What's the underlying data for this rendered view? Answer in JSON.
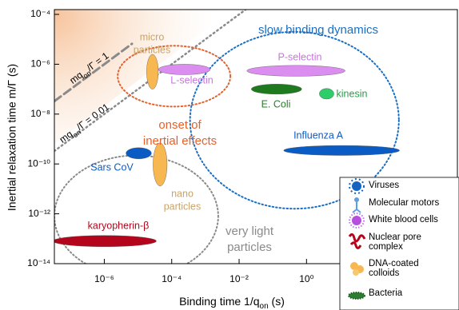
{
  "chart_data": {
    "type": "ellipse-map",
    "x_label": {
      "text": "Binding time 1/q",
      "sub": "on",
      "rest": " (s)"
    },
    "y_label": {
      "text": "Inertial relaxation time m/Γ (s)"
    },
    "log_x": true,
    "log_y": true,
    "xlim": [
      3.3e-08,
      30000
    ],
    "ylim": [
      1e-14,
      0.0001
    ],
    "xticks": [
      {
        "value": 1e-06,
        "label": "10⁻⁶"
      },
      {
        "value": 0.0001,
        "label": "10⁻⁴"
      },
      {
        "value": 0.01,
        "label": "10⁻²"
      },
      {
        "value": 1,
        "label": "10⁰"
      }
    ],
    "yticks": [
      {
        "value": 1e-14,
        "label": "10⁻¹⁴"
      },
      {
        "value": 1e-12,
        "label": "10⁻¹²"
      },
      {
        "value": 1e-10,
        "label": "10⁻¹⁰"
      },
      {
        "value": 1e-08,
        "label": "10⁻⁸"
      },
      {
        "value": 1e-06,
        "label": "10⁻⁶"
      },
      {
        "value": 0.0001,
        "label": "10⁻⁴"
      }
    ],
    "objects": [
      {
        "label": [
          "micro",
          "particles"
        ],
        "x_range": [
          1.8e-05,
          4e-05
        ],
        "y_range": [
          1e-07,
          2.5e-06
        ],
        "color": "#f7b851",
        "label_color": "#c9a46a"
      },
      {
        "label": [
          "L-selectin"
        ],
        "x_range": [
          4e-05,
          0.0014
        ],
        "y_range": [
          3.8e-07,
          1e-06
        ],
        "color": "#dc8ef0",
        "label_color": "#c775dc"
      },
      {
        "label": [
          "P-selectin"
        ],
        "x_range": [
          0.017,
          14
        ],
        "y_range": [
          3.3e-07,
          9e-07
        ],
        "color": "#dc8ef0",
        "label_color": "#c775dc"
      },
      {
        "label": [
          "E. Coli"
        ],
        "x_range": [
          0.023,
          0.72
        ],
        "y_range": [
          6.3e-08,
          1.6e-07
        ],
        "color": "#1f7a1f",
        "label_color": "#2a7d2a"
      },
      {
        "label": [
          "kinesin"
        ],
        "x_range": [
          2.4,
          6.5
        ],
        "y_range": [
          4e-08,
          1.07e-07
        ],
        "color": "#2fcc6a",
        "label_color": "#2a9a4a"
      },
      {
        "label": [
          "Influenza A"
        ],
        "x_range": [
          0.21,
          575
        ],
        "y_range": [
          2.2e-10,
          5.5e-10
        ],
        "color": "#0a5bc4",
        "label_color": "#0a5bc4"
      },
      {
        "label": [
          "Sars CoV"
        ],
        "x_range": [
          4.4e-06,
          2.5e-05
        ],
        "y_range": [
          1.6e-10,
          4.5e-10
        ],
        "color": "#0a5bc4",
        "label_color": "#0a5bc4"
      },
      {
        "label": [
          "nano",
          "particles"
        ],
        "x_range": [
          2.8e-05,
          7.3e-05
        ],
        "y_range": [
          1.3e-11,
          7e-10
        ],
        "color": "#f7b851",
        "label_color": "#c9a46a"
      },
      {
        "label": [
          "karyopherin-β"
        ],
        "x_range": [
          3e-08,
          3.5e-05
        ],
        "y_range": [
          4.8e-14,
          1.35e-13
        ],
        "color": "#b5051c",
        "label_color": "#b5051c"
      }
    ],
    "regions": [
      {
        "label": [
          "onset of",
          "inertial effects"
        ],
        "x_range": [
          2.5e-06,
          0.0055
        ],
        "y_range": [
          2e-08,
          5.5e-06
        ],
        "color": "#e8602a"
      },
      {
        "label": [
          "slow binding dynamics"
        ],
        "x_range": [
          0.00035,
          550
        ],
        "y_range": [
          1.6e-12,
          2e-05
        ],
        "color": "#1a6fc4"
      },
      {
        "label": [
          "very light",
          "particles"
        ],
        "x_range": [
          3.3e-08,
          0.0024
        ],
        "y_range": [
          3e-15,
          2.2e-10
        ],
        "color": "#8a8a8a"
      }
    ],
    "lines": [
      {
        "label": {
          "text": "mq",
          "sub": "on",
          "rest": "/Γ = 1"
        },
        "coefficient": 1,
        "style": "dashed",
        "color": "#8a8a8a"
      },
      {
        "label": {
          "text": "mq",
          "sub": "on",
          "rest": "/Γ = 0.01"
        },
        "coefficient": 0.01,
        "style": "dotted",
        "color": "#8a8a8a"
      }
    ],
    "legend": [
      {
        "label": [
          "Viruses"
        ]
      },
      {
        "label": [
          "Molecular motors"
        ]
      },
      {
        "label": [
          "White blood cells"
        ]
      },
      {
        "label": [
          "Nuclear pore",
          "complex"
        ]
      },
      {
        "label": [
          "DNA-coated",
          "colloids"
        ]
      },
      {
        "label": [
          "Bacteria"
        ]
      }
    ]
  }
}
